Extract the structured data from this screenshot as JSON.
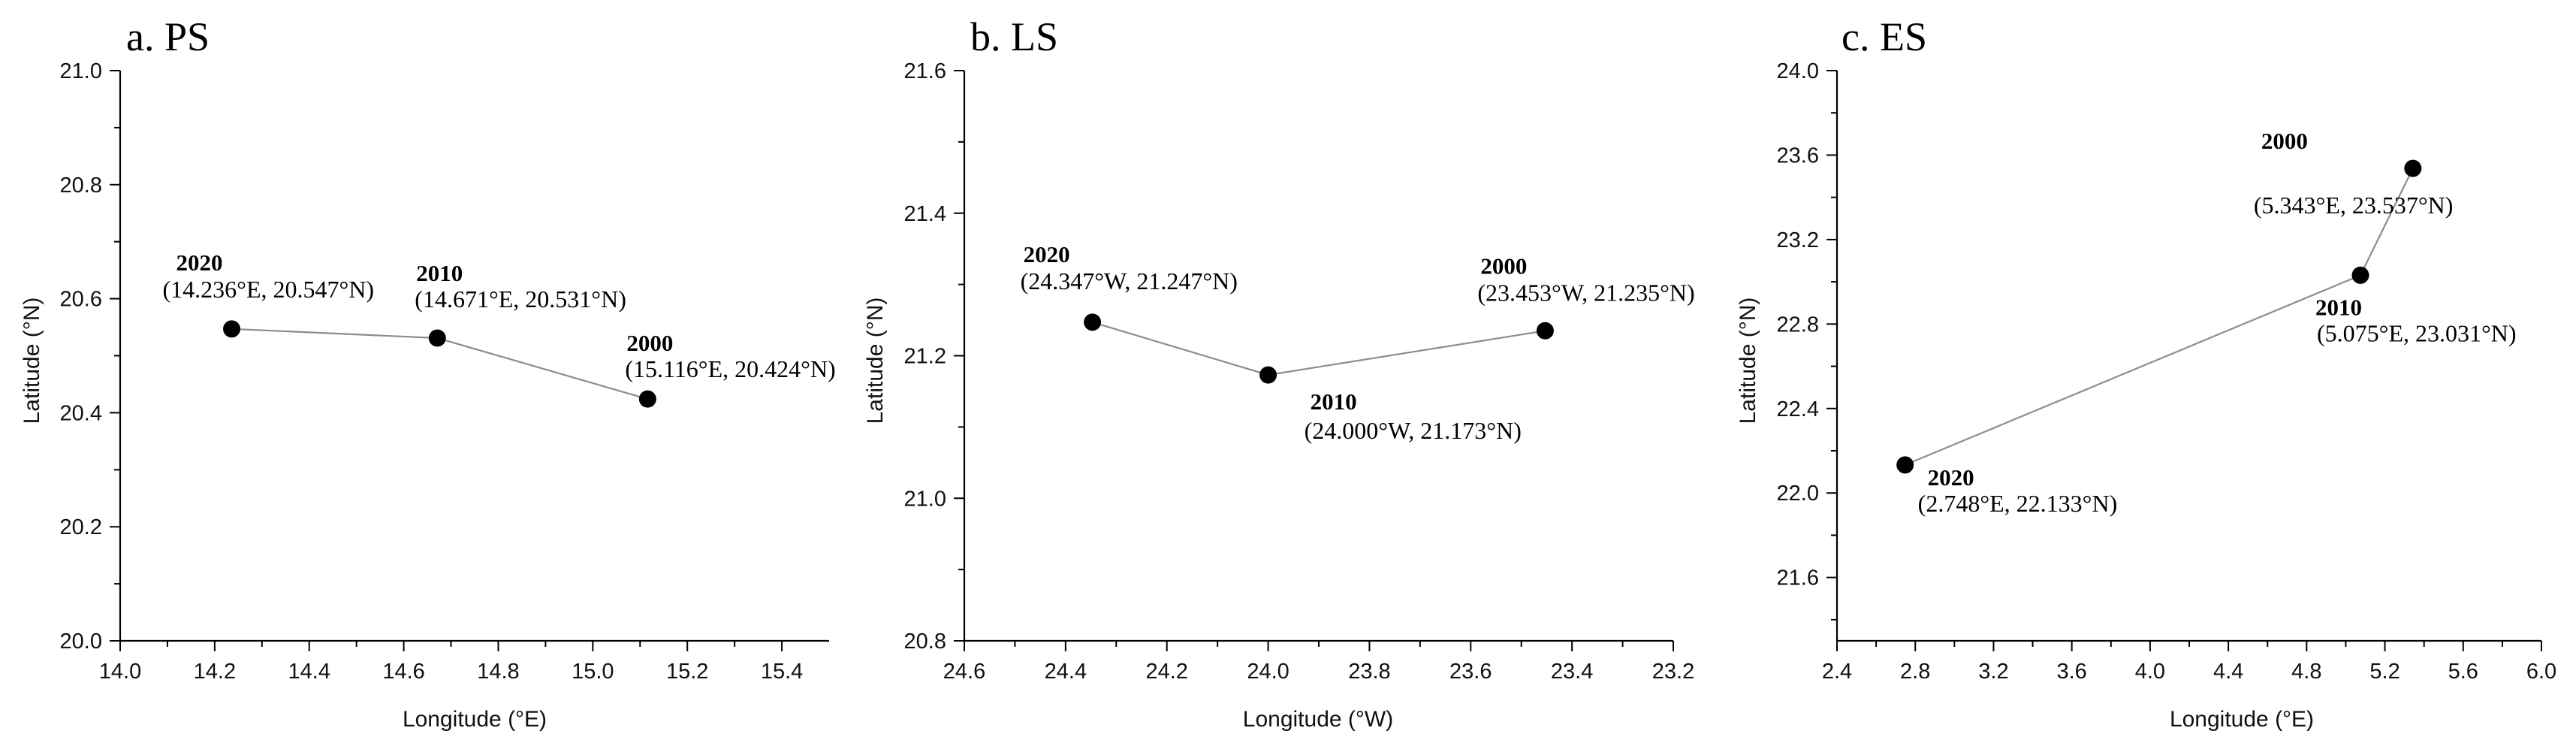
{
  "chart_data": [
    {
      "type": "line",
      "title": "a. PS",
      "xlabel": "Longitude (°E)",
      "ylabel": "Latitude (°N)",
      "xlim": [
        14.0,
        15.5
      ],
      "ylim": [
        20.0,
        21.0
      ],
      "xticks": [
        "14.0",
        "14.2",
        "14.4",
        "14.6",
        "14.8",
        "15.0",
        "15.2",
        "15.4"
      ],
      "yticks": [
        "20.0",
        "20.2",
        "20.4",
        "20.6",
        "20.8",
        "21.0"
      ],
      "line_order": [
        "2020",
        "2010",
        "2000"
      ],
      "points": [
        {
          "year": "2000",
          "x": 15.116,
          "y": 20.424,
          "coord_label": "(15.116°E, 20.424°N)"
        },
        {
          "year": "2010",
          "x": 14.671,
          "y": 20.531,
          "coord_label": "(14.671°E, 20.531°N)"
        },
        {
          "year": "2020",
          "x": 14.236,
          "y": 20.547,
          "coord_label": "(14.236°E, 20.547°N)"
        }
      ]
    },
    {
      "type": "line",
      "title": "b. LS",
      "xlabel": "Longitude (°W)",
      "ylabel": "Latitude (°N)",
      "xlim": [
        24.6,
        23.2
      ],
      "ylim": [
        20.8,
        21.6
      ],
      "xticks": [
        "24.6",
        "24.4",
        "24.2",
        "24.0",
        "23.8",
        "23.6",
        "23.4",
        "23.2"
      ],
      "yticks": [
        "20.8",
        "21.0",
        "21.2",
        "21.4",
        "21.6"
      ],
      "line_order": [
        "2020",
        "2010",
        "2000"
      ],
      "points": [
        {
          "year": "2000",
          "x": 23.453,
          "y": 21.235,
          "coord_label": "(23.453°W, 21.235°N)"
        },
        {
          "year": "2010",
          "x": 24.0,
          "y": 21.173,
          "coord_label": "(24.000°W, 21.173°N)"
        },
        {
          "year": "2020",
          "x": 24.347,
          "y": 21.247,
          "coord_label": "(24.347°W, 21.247°N)"
        }
      ]
    },
    {
      "type": "line",
      "title": "c. ES",
      "xlabel": "Longitude (°E)",
      "ylabel": "Latitude (°N)",
      "xlim": [
        2.4,
        6.0
      ],
      "ylim": [
        21.3,
        24.0
      ],
      "xticks": [
        "2.4",
        "2.8",
        "3.2",
        "3.6",
        "4.0",
        "4.4",
        "4.8",
        "5.2",
        "5.6",
        "6.0"
      ],
      "yticks": [
        "21.6",
        "22.0",
        "22.4",
        "22.8",
        "23.2",
        "23.6",
        "24.0"
      ],
      "line_order": [
        "2020",
        "2010",
        "2000"
      ],
      "points": [
        {
          "year": "2000",
          "x": 5.343,
          "y": 23.537,
          "coord_label": "(5.343°E, 23.537°N)"
        },
        {
          "year": "2010",
          "x": 5.075,
          "y": 23.031,
          "coord_label": "(5.075°E, 23.031°N)"
        },
        {
          "year": "2020",
          "x": 2.748,
          "y": 22.133,
          "coord_label": "(2.748°E, 22.133°N)"
        }
      ]
    }
  ]
}
